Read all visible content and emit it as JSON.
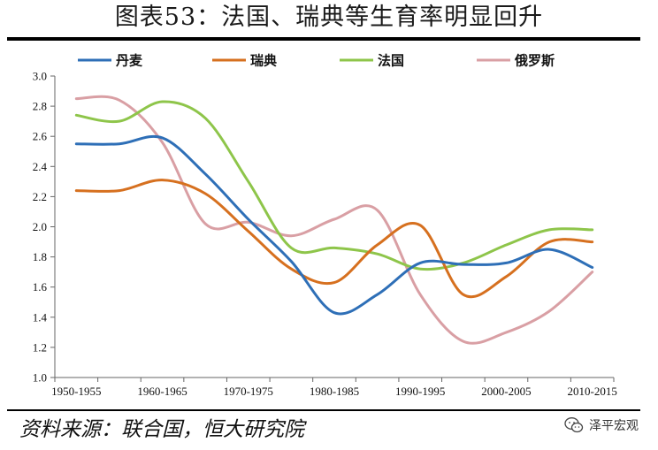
{
  "header": {
    "title": "图表53：法国、瑞典等生育率明显回升"
  },
  "footer": {
    "source": "资料来源：联合国，恒大研究院",
    "watermark_text": "泽平宏观",
    "watermark_icon": "wechat-icon"
  },
  "chart_data": {
    "type": "line",
    "title": "",
    "xlabel": "",
    "ylabel": "",
    "x": [
      "1950-1955",
      "1955-1960",
      "1960-1965",
      "1965-1970",
      "1970-1975",
      "1975-1980",
      "1980-1985",
      "1985-1990",
      "1990-1995",
      "1995-2000",
      "2000-2005",
      "2005-2010",
      "2010-2015"
    ],
    "x_tick_labels": [
      "1950-1955",
      "1960-1965",
      "1970-1975",
      "1980-1985",
      "1990-1995",
      "2000-2005",
      "2010-2015"
    ],
    "y_ticks": [
      "1.0",
      "1.2",
      "1.4",
      "1.6",
      "1.8",
      "2.0",
      "2.2",
      "2.4",
      "2.6",
      "2.8",
      "3.0"
    ],
    "ylim": [
      1.0,
      3.0
    ],
    "grid": false,
    "legend_position": "top",
    "smooth": true,
    "series": [
      {
        "name": "丹麦",
        "color": "#2e6fb7",
        "values": [
          2.55,
          2.55,
          2.59,
          2.35,
          2.05,
          1.77,
          1.43,
          1.55,
          1.76,
          1.75,
          1.76,
          1.85,
          1.73
        ]
      },
      {
        "name": "瑞典",
        "color": "#d6701f",
        "values": [
          2.24,
          2.24,
          2.31,
          2.22,
          1.97,
          1.72,
          1.63,
          1.88,
          2.01,
          1.55,
          1.67,
          1.9,
          1.9
        ]
      },
      {
        "name": "法国",
        "color": "#8ec54a",
        "values": [
          2.74,
          2.7,
          2.83,
          2.72,
          2.3,
          1.86,
          1.86,
          1.82,
          1.72,
          1.76,
          1.88,
          1.98,
          1.98
        ]
      },
      {
        "name": "俄罗斯",
        "color": "#d99fa4",
        "values": [
          2.85,
          2.84,
          2.56,
          2.02,
          2.03,
          1.94,
          2.05,
          2.11,
          1.55,
          1.24,
          1.3,
          1.44,
          1.7
        ]
      }
    ]
  }
}
